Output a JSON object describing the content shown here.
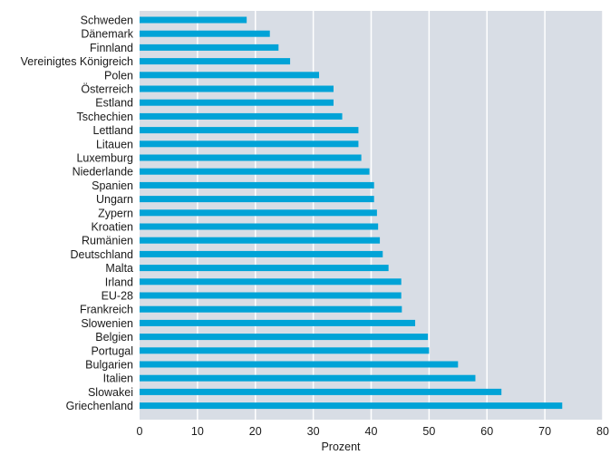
{
  "chart_data": {
    "type": "bar",
    "orientation": "horizontal",
    "categories": [
      "Schweden",
      "Dänemark",
      "Finnland",
      "Vereinigtes Königreich",
      "Polen",
      "Österreich",
      "Estland",
      "Tschechien",
      "Lettland",
      "Litauen",
      "Luxemburg",
      "Niederlande",
      "Spanien",
      "Ungarn",
      "Zypern",
      "Kroatien",
      "Rumänien",
      "Deutschland",
      "Malta",
      "Irland",
      "EU-28",
      "Frankreich",
      "Slowenien",
      "Belgien",
      "Portugal",
      "Bulgarien",
      "Italien",
      "Slowakei",
      "Griechenland"
    ],
    "values": [
      18.5,
      22.5,
      24.0,
      26.0,
      31.0,
      33.5,
      33.5,
      35.0,
      37.8,
      37.8,
      38.3,
      39.7,
      40.5,
      40.5,
      41.0,
      41.2,
      41.5,
      42.0,
      43.0,
      45.2,
      45.2,
      45.3,
      47.6,
      49.8,
      50.0,
      55.0,
      58.0,
      62.5,
      73.0
    ],
    "xlabel": "Prozent",
    "xlim": [
      0,
      80
    ],
    "xticks": [
      "0",
      "10",
      "20",
      "30",
      "40",
      "50",
      "60",
      "70",
      "80"
    ],
    "grid": true,
    "colors": {
      "bar": "#00a3d7",
      "plot_background": "#d8dde5",
      "gridline": "#ffffff"
    }
  }
}
